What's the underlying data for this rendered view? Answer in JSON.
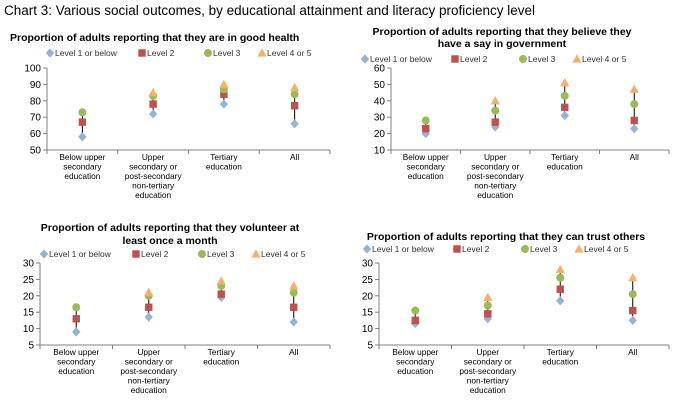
{
  "page": {
    "title": "Chart 3: Various social outcomes, by educational attainment and literacy proficiency level"
  },
  "legend_labels": [
    "Level 1 or below",
    "Level 2",
    "Level 3",
    "Level 4 or 5"
  ],
  "colors": {
    "level1": "#95b3d7",
    "level2": "#c0504d",
    "level3": "#9bbb59",
    "level4": "#f5b06e",
    "axis": "#808080",
    "range_line": "#000000"
  },
  "chart_data": [
    {
      "type": "scatter",
      "title": "Proportion of adults reporting that they are in good health",
      "categories": [
        "Below upper secondary education",
        "Upper secondary or post-secondary non-tertiary education",
        "Tertiary education",
        "All"
      ],
      "category_lines": [
        [
          "Below upper",
          "secondary",
          "education"
        ],
        [
          "Upper",
          "secondary or",
          "post-secondary",
          "non-tertiary",
          "education"
        ],
        [
          "Tertiary",
          "education"
        ],
        [
          "All"
        ]
      ],
      "ylim": [
        50,
        100
      ],
      "yticks": [
        50,
        60,
        70,
        80,
        90,
        100
      ],
      "legend_position": "top",
      "series": [
        {
          "name": "Level 1 or below",
          "marker": "diamond",
          "values": [
            58,
            72,
            78,
            66
          ]
        },
        {
          "name": "Level 2",
          "marker": "square",
          "values": [
            67,
            78,
            84,
            77
          ]
        },
        {
          "name": "Level 3",
          "marker": "circle",
          "values": [
            73,
            83,
            87,
            84
          ]
        },
        {
          "name": "Level 4 or 5",
          "marker": "triangle",
          "values": [
            null,
            85,
            90,
            88
          ]
        }
      ]
    },
    {
      "type": "scatter",
      "title": "Proportion of adults reporting that they believe they have a say in government",
      "categories": [
        "Below upper secondary education",
        "Upper secondary or post-secondary non-tertiary education",
        "Tertiary education",
        "All"
      ],
      "category_lines": [
        [
          "Below upper",
          "secondary",
          "education"
        ],
        [
          "Upper",
          "secondary or",
          "post-secondary",
          "non-tertiary",
          "education"
        ],
        [
          "Tertiary",
          "education"
        ],
        [
          "All"
        ]
      ],
      "ylim": [
        10,
        60
      ],
      "yticks": [
        10,
        20,
        30,
        40,
        50,
        60
      ],
      "legend_position": "top",
      "series": [
        {
          "name": "Level 1 or below",
          "marker": "diamond",
          "values": [
            20,
            24,
            31,
            23
          ]
        },
        {
          "name": "Level 2",
          "marker": "square",
          "values": [
            23,
            27,
            36,
            28
          ]
        },
        {
          "name": "Level 3",
          "marker": "circle",
          "values": [
            28,
            34,
            43,
            38
          ]
        },
        {
          "name": "Level 4 or 5",
          "marker": "triangle",
          "values": [
            null,
            40,
            51,
            47
          ]
        }
      ]
    },
    {
      "type": "scatter",
      "title": "Proportion of adults reporting that they volunteer at least once a month",
      "categories": [
        "Below upper secondary education",
        "Upper secondary or post-secondary non-tertiary education",
        "Tertiary education",
        "All"
      ],
      "category_lines": [
        [
          "Below upper",
          "secondary",
          "education"
        ],
        [
          "Upper",
          "secondary or",
          "post-secondary",
          "non-tertiary",
          "education"
        ],
        [
          "Tertiary",
          "education"
        ],
        [
          "All"
        ]
      ],
      "ylim": [
        5,
        30
      ],
      "yticks": [
        5,
        10,
        15,
        20,
        25,
        30
      ],
      "legend_position": "top",
      "series": [
        {
          "name": "Level 1 or below",
          "marker": "diamond",
          "values": [
            9,
            13.5,
            19.5,
            12
          ]
        },
        {
          "name": "Level 2",
          "marker": "square",
          "values": [
            13,
            16.5,
            20.5,
            16.5
          ]
        },
        {
          "name": "Level 3",
          "marker": "circle",
          "values": [
            16.5,
            20,
            23,
            21
          ]
        },
        {
          "name": "Level 4 or 5",
          "marker": "triangle",
          "values": [
            null,
            21,
            24.5,
            23
          ]
        }
      ]
    },
    {
      "type": "scatter",
      "title": "Proportion of adults reporting that they can trust others",
      "categories": [
        "Below upper secondary education",
        "Upper secondary or post-secondary non-tertiary education",
        "Tertiary education",
        "All"
      ],
      "category_lines": [
        [
          "Below upper",
          "secondary",
          "education"
        ],
        [
          "Upper",
          "secondary or",
          "post-secondary",
          "non-tertiary",
          "education"
        ],
        [
          "Tertiary",
          "education"
        ],
        [
          "All"
        ]
      ],
      "ylim": [
        5,
        30
      ],
      "yticks": [
        5,
        10,
        15,
        20,
        25,
        30
      ],
      "legend_position": "top",
      "series": [
        {
          "name": "Level 1 or below",
          "marker": "diamond",
          "values": [
            11.5,
            13,
            18.5,
            12.5
          ]
        },
        {
          "name": "Level 2",
          "marker": "square",
          "values": [
            12.5,
            14.5,
            22,
            15.5
          ]
        },
        {
          "name": "Level 3",
          "marker": "circle",
          "values": [
            15.5,
            17,
            25.5,
            20.5
          ]
        },
        {
          "name": "Level 4 or 5",
          "marker": "triangle",
          "values": [
            null,
            19.5,
            28,
            25.5
          ]
        }
      ]
    }
  ]
}
